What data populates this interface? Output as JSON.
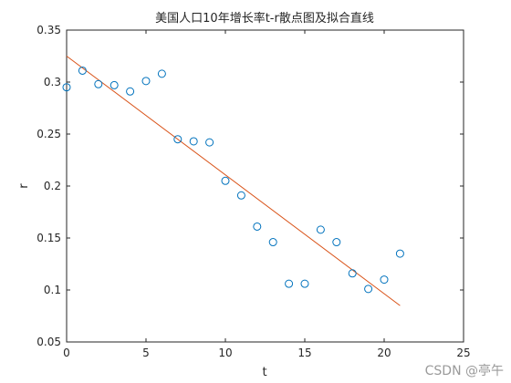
{
  "chart_data": {
    "type": "scatter",
    "title": "美国人口10年增长率t-r散点图及拟合直线",
    "xlabel": "t",
    "ylabel": "r",
    "xlim": [
      0,
      25
    ],
    "ylim": [
      0.05,
      0.35
    ],
    "xticks": [
      0,
      5,
      10,
      15,
      20,
      25
    ],
    "yticks": [
      0.05,
      0.1,
      0.15,
      0.2,
      0.25,
      0.3,
      0.35
    ],
    "grid": false,
    "series": [
      {
        "kind": "scatter",
        "marker": "circle",
        "color": "#0072BD",
        "x": [
          0,
          1,
          2,
          3,
          4,
          5,
          6,
          7,
          8,
          9,
          10,
          11,
          12,
          13,
          14,
          15,
          16,
          17,
          18,
          19,
          20,
          21
        ],
        "y": [
          0.295,
          0.311,
          0.298,
          0.297,
          0.291,
          0.301,
          0.308,
          0.245,
          0.243,
          0.242,
          0.205,
          0.191,
          0.161,
          0.146,
          0.106,
          0.106,
          0.158,
          0.146,
          0.116,
          0.101,
          0.11,
          0.135
        ]
      },
      {
        "kind": "line",
        "color": "#D95319",
        "x": [
          0,
          21
        ],
        "y": [
          0.325,
          0.085
        ]
      }
    ]
  },
  "watermark": "CSDN @亭午"
}
